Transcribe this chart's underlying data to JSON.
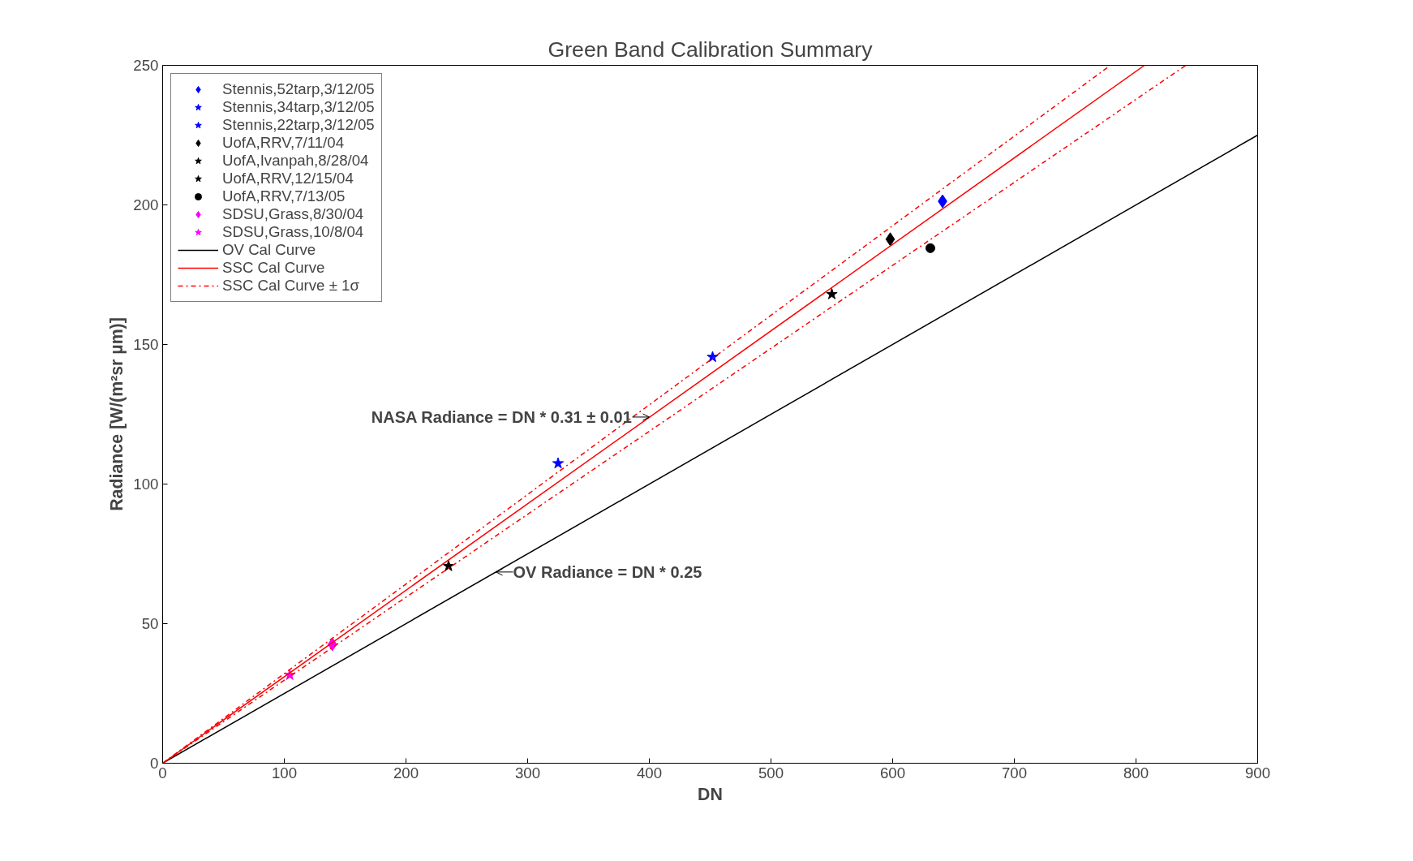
{
  "chart_data": {
    "type": "scatter",
    "title": "Green Band Calibration Summary",
    "xlabel": "DN",
    "ylabel": "Radiance [W/(m²sr µm)]",
    "xlim": [
      0,
      900
    ],
    "ylim": [
      0,
      250
    ],
    "xticks": [
      0,
      100,
      200,
      300,
      400,
      500,
      600,
      700,
      800,
      900
    ],
    "yticks": [
      0,
      50,
      100,
      150,
      200,
      250
    ],
    "grid": false,
    "legend": "top left",
    "series": [
      {
        "name": "Stennis,52tarp,3/12/05",
        "marker": "diamond",
        "color": "#0000ff",
        "x": [
          641
        ],
        "values": [
          201.3
        ]
      },
      {
        "name": "Stennis,34tarp,3/12/05",
        "marker": "star",
        "color": "#0000ff",
        "x": [
          452
        ],
        "values": [
          145.5
        ]
      },
      {
        "name": "Stennis,22tarp,3/12/05",
        "marker": "star",
        "color": "#0000ff",
        "x": [
          325
        ],
        "values": [
          107.4
        ]
      },
      {
        "name": "UofA,RRV,7/11/04",
        "marker": "diamond",
        "color": "#000000",
        "x": [
          598
        ],
        "values": [
          187.7
        ]
      },
      {
        "name": "UofA,Ivanpah,8/28/04",
        "marker": "star",
        "color": "#000000",
        "x": [
          550
        ],
        "values": [
          168
        ]
      },
      {
        "name": "UofA,RRV,12/15/04",
        "marker": "star",
        "color": "#000000",
        "x": [
          235
        ],
        "values": [
          70.6
        ]
      },
      {
        "name": "UofA,RRV,7/13/05",
        "marker": "circle",
        "color": "#000000",
        "x": [
          631
        ],
        "values": [
          184.5
        ]
      },
      {
        "name": "SDSU,Grass,8/30/04",
        "marker": "diamond",
        "color": "#ff00ff",
        "x": [
          139.5
        ],
        "values": [
          42.6
        ]
      },
      {
        "name": "SDSU,Grass,10/8/04",
        "marker": "star",
        "color": "#ff00ff",
        "x": [
          104.5
        ],
        "values": [
          31.6
        ]
      },
      {
        "name": "OV Cal Curve",
        "type": "line",
        "line_style": "solid",
        "color": "#000000",
        "x": [
          0,
          900
        ],
        "values": [
          0,
          225
        ]
      },
      {
        "name": "SSC Cal Curve",
        "type": "line",
        "line_style": "solid",
        "color": "#ff0000",
        "x": [
          0,
          807
        ],
        "values": [
          0,
          250
        ]
      },
      {
        "name": "SSC Cal Curve ± 1σ",
        "type": "line",
        "line_style": "dashdot",
        "color": "#ff0000",
        "x": [
          0,
          779
        ],
        "values": [
          0,
          250
        ]
      },
      {
        "type": "line",
        "line_style": "dashdot",
        "color": "#ff0000",
        "x": [
          0,
          841
        ],
        "values": [
          0,
          250
        ]
      }
    ],
    "annotations": [
      {
        "text": "NASA Radiance = DN * 0.31 ± 0.01",
        "x": 400,
        "y": 124
      },
      {
        "text": "OV Radiance = DN * 0.25",
        "x": 274,
        "y": 68.5
      }
    ]
  }
}
